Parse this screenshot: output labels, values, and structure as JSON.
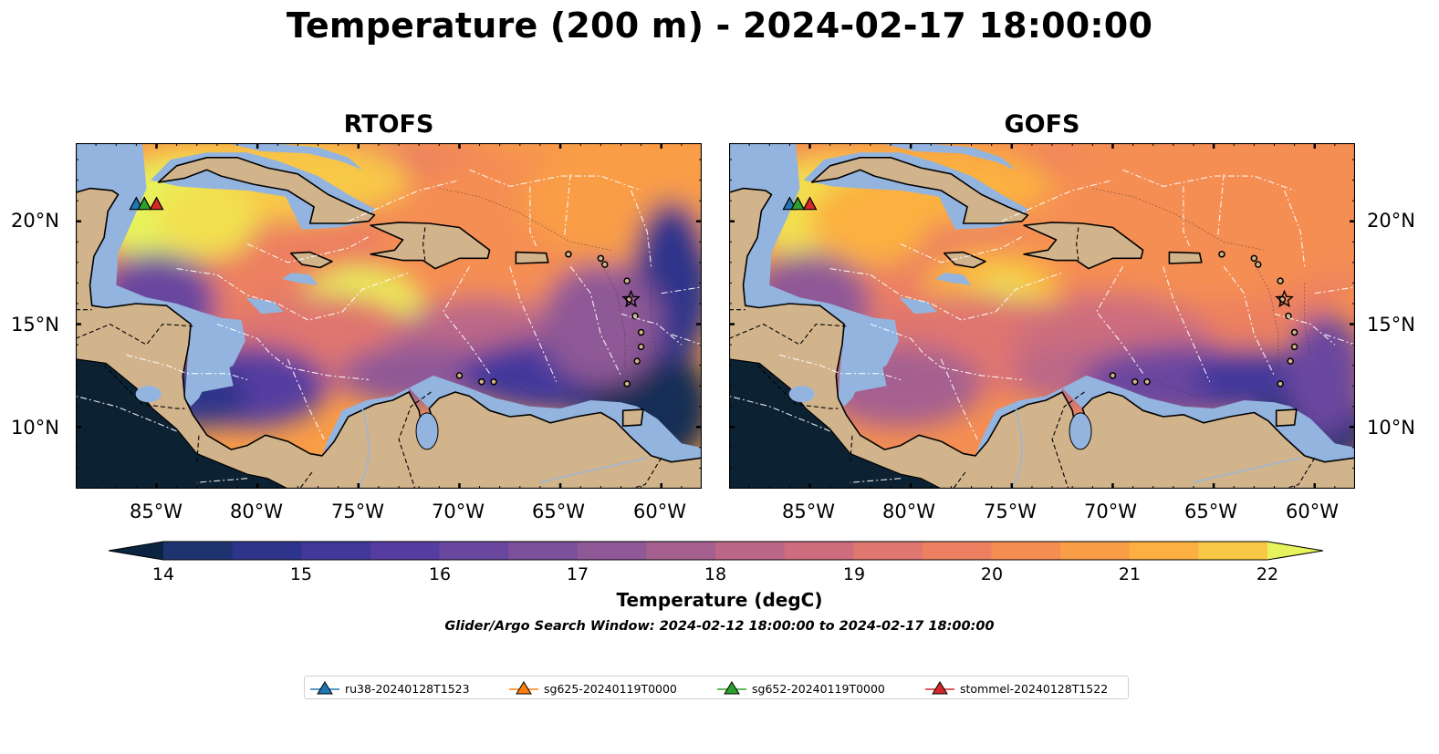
{
  "title": "Temperature (200 m) - 2024-02-17 18:00:00",
  "panels": [
    {
      "title": "RTOFS"
    },
    {
      "title": "GOFS"
    }
  ],
  "axes": {
    "lon_labels": [
      "85°W",
      "80°W",
      "75°W",
      "70°W",
      "65°W",
      "60°W"
    ],
    "lat_labels": [
      "20°N",
      "15°N",
      "10°N"
    ]
  },
  "colorbar": {
    "title": "Temperature (degC)",
    "min": 14,
    "max": 22,
    "step": 0.5,
    "tick_labels": [
      "14",
      "15",
      "16",
      "17",
      "18",
      "19",
      "20",
      "21",
      "22"
    ],
    "colors": [
      "#0b2540",
      "#142d55",
      "#1f3370",
      "#2e348a",
      "#42389c",
      "#553da0",
      "#6a479f",
      "#7c509b",
      "#8f5896",
      "#a56090",
      "#bb6788",
      "#cd6d7d",
      "#df7670",
      "#ec8060",
      "#f58e52",
      "#f99d47",
      "#fbb041",
      "#f8c846",
      "#f2e050",
      "#e7f35c"
    ]
  },
  "search_window": "Glider/Argo Search Window: 2024-02-12 18:00:00 to 2024-02-17 18:00:00",
  "legend": [
    {
      "label": "ru38-20240128T1523",
      "color": "#1f77b4"
    },
    {
      "label": "sg625-20240119T0000",
      "color": "#ff7f0e"
    },
    {
      "label": "sg652-20240119T0000",
      "color": "#2ca02c"
    },
    {
      "label": "stommel-20240128T1522",
      "color": "#d62728"
    }
  ],
  "colors": {
    "land": "#d2b48c",
    "shelf": "#93b4df",
    "deep": "#0c2233"
  }
}
